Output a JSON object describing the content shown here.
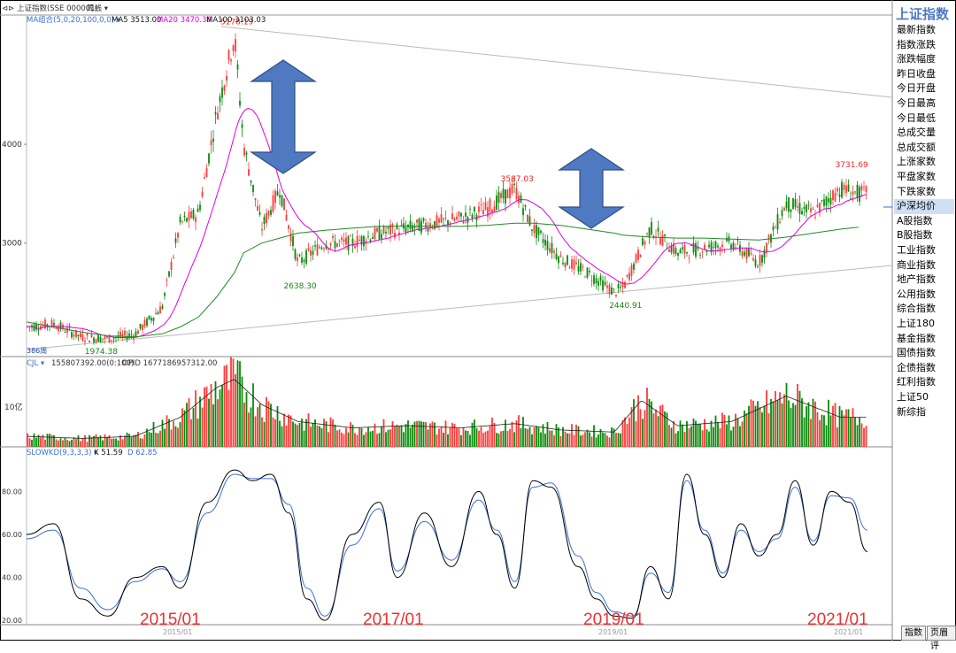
{
  "top_bar": {
    "index_label": "上证指数(SSE 000001)",
    "period_label": "周线",
    "ma_label": "MA组合(5,0,20,100,0,0)",
    "ma5_label": "MA5 3513.00",
    "ma20_label": "MA20 3470.36",
    "ma100_label": "MA100 3103.03"
  },
  "vol_bar": {
    "label": "CJL",
    "value": "155807392.00(0:100)",
    "opid": "OPID 1677186957312.00",
    "axis_label": "10亿"
  },
  "kd_bar": {
    "label": "SLOWKD(9,3,3,3)",
    "k": "K 51.59",
    "d": "D 62.85"
  },
  "sidebar": {
    "title": "上证指数",
    "items": [
      {
        "label": "最新指数"
      },
      {
        "label": "指数涨跌"
      },
      {
        "label": "涨跌幅度"
      },
      {
        "label": "昨日收盘"
      },
      {
        "label": "今日开盘"
      },
      {
        "label": "今日最高"
      },
      {
        "label": "今日最低"
      },
      {
        "label": "总成交量"
      },
      {
        "label": "总成交额"
      },
      {
        "label": "上涨家数"
      },
      {
        "label": "平盘家数"
      },
      {
        "label": "下跌家数"
      },
      {
        "label": "沪深均价"
      },
      {
        "label": "A股指数"
      },
      {
        "label": "B股指数"
      },
      {
        "label": "工业指数"
      },
      {
        "label": "商业指数"
      },
      {
        "label": "地产指数"
      },
      {
        "label": "公用指数"
      },
      {
        "label": "综合指数"
      },
      {
        "label": "上证180"
      },
      {
        "label": "基金指数"
      },
      {
        "label": "国债指数"
      },
      {
        "label": "企债指数"
      },
      {
        "label": "红利指数"
      },
      {
        "label": "上证50"
      },
      {
        "label": "新综指"
      }
    ]
  },
  "bottom_tabs": {
    "index": "指数",
    "comments": "页眉评"
  },
  "bottom_left_label": "386周",
  "year_labels": [
    "2015/01",
    "2017/01",
    "2019/01",
    "2021/01"
  ],
  "colors": {
    "up": "#ff3b3b",
    "down": "#0a8a0a",
    "ma5": "#ff3b3b",
    "ma20": "#e000e0",
    "ma100": "#228b22",
    "arrow": "#4f7ac2",
    "k_line": "#000000",
    "d_line": "#3b6fd6",
    "axis_text": "#333333",
    "year_text": "#ef3030"
  },
  "chart_data": [
    {
      "type": "candlestick",
      "title": "上证指数 weekly",
      "y_ticks": [
        3000,
        4000
      ],
      "ylim": [
        1850,
        5300
      ],
      "annotations": [
        {
          "label": "5178.19",
          "date": "2015-06",
          "value": 5178.19,
          "kind": "high"
        },
        {
          "label": "3587.03",
          "date": "2018-01",
          "value": 3587.03,
          "kind": "high"
        },
        {
          "label": "3731.69",
          "date": "2021-02",
          "value": 3731.69,
          "kind": "high"
        },
        {
          "label": "1974.38",
          "date": "2014-03",
          "value": 1974.38,
          "kind": "low"
        },
        {
          "label": "2638.30",
          "date": "2016-01",
          "value": 2638.3,
          "kind": "low"
        },
        {
          "label": "2440.91",
          "date": "2019-01",
          "value": 2440.91,
          "kind": "low"
        }
      ],
      "close_series": {
        "dates": [
          "2013-07",
          "2013-10",
          "2014-01",
          "2014-04",
          "2014-07",
          "2014-10",
          "2014-12",
          "2015-02",
          "2015-04",
          "2015-06",
          "2015-07",
          "2015-09",
          "2015-11",
          "2016-01",
          "2016-04",
          "2016-07",
          "2016-10",
          "2017-01",
          "2017-04",
          "2017-07",
          "2017-10",
          "2018-01",
          "2018-03",
          "2018-06",
          "2018-09",
          "2018-12",
          "2019-01",
          "2019-04",
          "2019-07",
          "2019-10",
          "2020-01",
          "2020-04",
          "2020-07",
          "2020-10",
          "2021-01",
          "2021-03"
        ],
        "values": [
          2150,
          2180,
          2050,
          2030,
          2080,
          2350,
          3200,
          3300,
          4300,
          5100,
          4000,
          3150,
          3550,
          2800,
          3000,
          3000,
          3100,
          3150,
          3200,
          3250,
          3350,
          3550,
          3150,
          2850,
          2700,
          2500,
          2550,
          3150,
          2900,
          2950,
          3000,
          2800,
          3400,
          3300,
          3550,
          3500
        ]
      },
      "ma100_values": [
        2200,
        2150,
        2100,
        2060,
        2050,
        2080,
        2150,
        2250,
        2450,
        2700,
        2900,
        3000,
        3050,
        3100,
        3130,
        3150,
        3170,
        3170,
        3170,
        3170,
        3180,
        3200,
        3200,
        3180,
        3140,
        3100,
        3080,
        3060,
        3050,
        3050,
        3040,
        3030,
        3060,
        3100,
        3140,
        3160
      ]
    },
    {
      "type": "bar",
      "title": "CJL (volume)",
      "ylabel": "10亿",
      "dates": [
        "2013-07",
        "2014-01",
        "2014-07",
        "2014-12",
        "2015-04",
        "2015-06",
        "2015-09",
        "2016-01",
        "2016-07",
        "2017-01",
        "2017-07",
        "2018-01",
        "2018-06",
        "2018-12",
        "2019-03",
        "2019-07",
        "2020-01",
        "2020-07",
        "2021-01"
      ],
      "values": [
        0.25,
        0.2,
        0.25,
        0.7,
        1.4,
        1.6,
        1.0,
        0.6,
        0.45,
        0.5,
        0.45,
        0.55,
        0.4,
        0.35,
        1.1,
        0.5,
        0.6,
        1.2,
        0.7
      ]
    },
    {
      "type": "line",
      "title": "SLOWKD(9,3,3,3)",
      "y_ticks": [
        20,
        40,
        60,
        80
      ],
      "ylim": [
        18,
        95
      ],
      "x": [
        "2013-07",
        "2013-10",
        "2014-01",
        "2014-04",
        "2014-07",
        "2014-10",
        "2014-12",
        "2015-03",
        "2015-06",
        "2015-08",
        "2015-10",
        "2015-12",
        "2016-02",
        "2016-04",
        "2016-07",
        "2016-10",
        "2016-12",
        "2017-03",
        "2017-06",
        "2017-09",
        "2017-11",
        "2018-01",
        "2018-03",
        "2018-05",
        "2018-08",
        "2018-10",
        "2018-12",
        "2019-02",
        "2019-04",
        "2019-06",
        "2019-08",
        "2019-10",
        "2019-12",
        "2020-02",
        "2020-04",
        "2020-06",
        "2020-08",
        "2020-10",
        "2020-12",
        "2021-02",
        "2021-04"
      ],
      "series": [
        {
          "name": "K",
          "values": [
            60,
            65,
            30,
            22,
            40,
            45,
            35,
            75,
            90,
            85,
            88,
            70,
            30,
            20,
            60,
            75,
            40,
            70,
            45,
            80,
            60,
            35,
            85,
            82,
            45,
            30,
            22,
            21,
            45,
            30,
            88,
            60,
            40,
            65,
            50,
            60,
            85,
            55,
            80,
            75,
            52
          ]
        },
        {
          "name": "D",
          "values": [
            58,
            62,
            35,
            25,
            38,
            44,
            38,
            70,
            88,
            86,
            86,
            74,
            35,
            22,
            55,
            72,
            43,
            66,
            48,
            76,
            62,
            38,
            82,
            84,
            50,
            33,
            24,
            22,
            42,
            33,
            85,
            62,
            42,
            62,
            52,
            58,
            82,
            57,
            78,
            77,
            62
          ]
        }
      ]
    }
  ]
}
